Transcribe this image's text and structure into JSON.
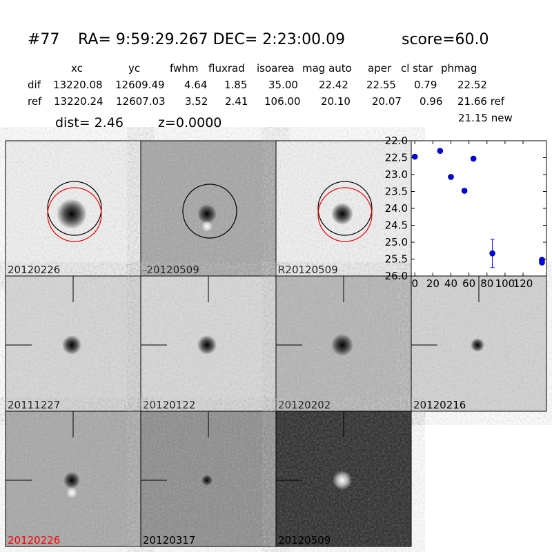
{
  "header": {
    "id": "#77",
    "coords": "RA= 9:59:29.267 DEC= 2:23:00.09",
    "score": "score=60.0"
  },
  "table": {
    "columns": [
      "xc",
      "yc",
      "fwhm",
      "fluxrad",
      "isoarea",
      "mag auto",
      "aper",
      "cl star",
      "phmag"
    ],
    "rows": [
      {
        "label": "dif",
        "cells": [
          "13220.08",
          "12609.49",
          "4.64",
          "1.85",
          "35.00",
          "22.42",
          "22.55",
          "0.79",
          "22.52"
        ]
      },
      {
        "label": "ref",
        "cells": [
          "13220.24",
          "12607.03",
          "3.52",
          "2.41",
          "106.00",
          "20.10",
          "20.07",
          "0.96",
          "21.66 ref"
        ]
      }
    ],
    "extra": "21.15 new"
  },
  "dist": "dist=  2.46",
  "z": "z=0.0000",
  "stamps": [
    {
      "label": "20120226",
      "color": "#000000"
    },
    {
      "label": "-20120509",
      "color": "#000000"
    },
    {
      "label": "R20120509",
      "color": "#000000"
    },
    {
      "label": "20111227",
      "color": "#000000"
    },
    {
      "label": "20120122",
      "color": "#000000"
    },
    {
      "label": "20120202",
      "color": "#000000"
    },
    {
      "label": "20120216",
      "color": "#000000"
    },
    {
      "label": "20120226",
      "color": "#ff0000"
    },
    {
      "label": "20120317",
      "color": "#000000"
    },
    {
      "label": "20120509",
      "color": "#000000"
    }
  ],
  "chart_data": {
    "type": "scatter",
    "x": [
      0,
      28,
      40,
      55,
      65,
      86,
      141,
      141
    ],
    "values": [
      22.47,
      22.3,
      23.07,
      23.48,
      22.53,
      25.33,
      25.52,
      25.6
    ],
    "errors": [
      0.03,
      0.03,
      0.04,
      0.06,
      0.03,
      0.42,
      0.04,
      0.04
    ],
    "color": "#0000ff",
    "xlim": [
      -4,
      146
    ],
    "ylim": [
      22,
      26
    ],
    "y_inverted": true,
    "xticks": [
      0,
      20,
      40,
      60,
      80,
      100,
      120
    ],
    "yticks": [
      {
        "value": 22,
        "label": "22.0"
      },
      {
        "value": 22.5,
        "label": "22.5"
      },
      {
        "value": 23,
        "label": "23.0"
      },
      {
        "value": 23.5,
        "label": "23.5"
      },
      {
        "value": 24,
        "label": "24.0"
      },
      {
        "value": 24.5,
        "label": "24.5"
      },
      {
        "value": 25,
        "label": "25.0"
      },
      {
        "value": 25.5,
        "label": "25.5"
      },
      {
        "value": 26,
        "label": "26.0"
      }
    ]
  }
}
